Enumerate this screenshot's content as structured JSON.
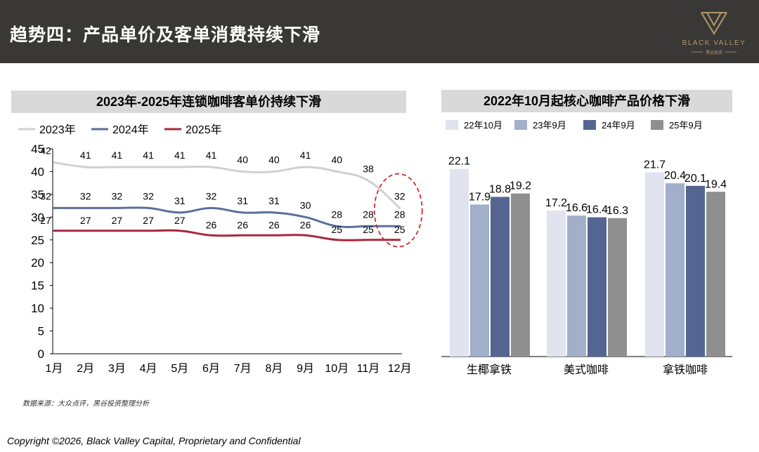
{
  "header": {
    "title": "趋势四：产品单价及客单消费持续下滑",
    "logo_text": "BLACK VALLEY",
    "logo_subtext": "黑谷投资"
  },
  "left_panel": {
    "title": "2023年-2025年连锁咖啡客单价持续下滑"
  },
  "right_panel": {
    "title": "2022年10月起核心咖啡产品价格下滑"
  },
  "source_note": "数据来源：大众点评，黑谷投资整理分析",
  "footer": "Copyright ©2026, Black Valley Capital, Proprietary and Confidential",
  "chart_data": [
    {
      "type": "line",
      "title": "2023年-2025年连锁咖啡客单价持续下滑",
      "categories": [
        "1月",
        "2月",
        "3月",
        "4月",
        "5月",
        "6月",
        "7月",
        "8月",
        "9月",
        "10月",
        "11月",
        "12月"
      ],
      "ylim": [
        0,
        45
      ],
      "yticks": [
        0,
        5,
        10,
        15,
        20,
        25,
        30,
        35,
        40,
        45
      ],
      "legend_position": "top-left",
      "grid": false,
      "series": [
        {
          "name": "2023年",
          "color": "#d0d0d0",
          "values": [
            42,
            41,
            41,
            41,
            41,
            41,
            40,
            40,
            41,
            40,
            38,
            32
          ]
        },
        {
          "name": "2024年",
          "color": "#5b6f9a",
          "values": [
            32,
            32,
            32,
            32,
            31,
            32,
            31,
            31,
            30,
            28,
            28,
            28
          ]
        },
        {
          "name": "2025年",
          "color": "#a8283f",
          "values": [
            27,
            27,
            27,
            27,
            27,
            26,
            26,
            26,
            26,
            25,
            25,
            25
          ]
        }
      ]
    },
    {
      "type": "bar",
      "title": "2022年10月起核心咖啡产品价格下滑",
      "categories": [
        "生椰拿铁",
        "美式咖啡",
        "拿铁咖啡"
      ],
      "legend_position": "top",
      "grid": false,
      "series": [
        {
          "name": "22年10月",
          "color": "#e1e4ee",
          "values": [
            22.1,
            17.2,
            21.7
          ]
        },
        {
          "name": "23年9月",
          "color": "#a2afcb",
          "values": [
            17.9,
            16.6,
            20.4
          ]
        },
        {
          "name": "24年9月",
          "color": "#556592",
          "values": [
            18.8,
            16.4,
            20.1
          ]
        },
        {
          "name": "25年9月",
          "color": "#8f8f8f",
          "values": [
            19.2,
            16.3,
            19.4
          ]
        }
      ]
    }
  ]
}
